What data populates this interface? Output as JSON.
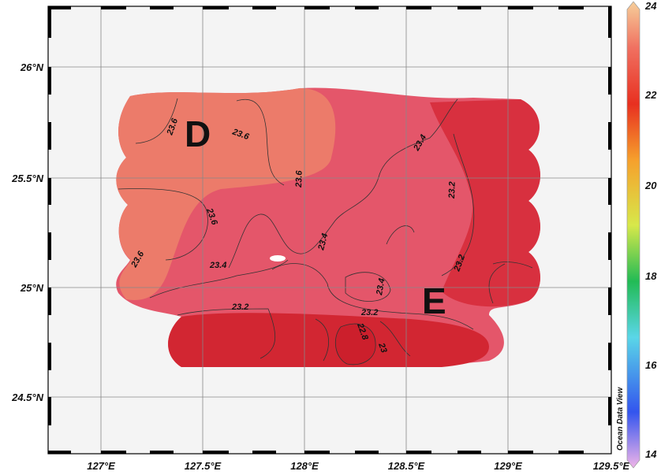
{
  "map": {
    "x_ticks": [
      "127°E",
      "127.5°E",
      "128°E",
      "128.5°E",
      "129°E",
      "129.5°E"
    ],
    "y_ticks": [
      "26°N",
      "25.5°N",
      "25°N",
      "24.5°N"
    ],
    "stations": [
      "D",
      "E"
    ],
    "contour_labels": [
      "23.6",
      "23.6",
      "23.6",
      "23.6",
      "23.4",
      "23.4",
      "23.4",
      "23.4",
      "23.2",
      "23.2",
      "23.2",
      "23.2",
      "22.8",
      "23",
      "23.6"
    ],
    "watermark": "Ocean Data View",
    "colors": {
      "warm_light": "#ec7b6a",
      "mid": "#e4566a",
      "dark": "#d8303f",
      "hot": "#d22632",
      "hole": "#ffffff"
    }
  },
  "colorbar": {
    "ticks": [
      "24",
      "22",
      "20",
      "18",
      "16",
      "14"
    ],
    "stops": [
      "#f0b4e8",
      "#3355ee",
      "#5ad6e8",
      "#22bb55",
      "#d7e84a",
      "#f6a02c",
      "#e83020",
      "#f07060",
      "#f6cf9a"
    ]
  }
}
